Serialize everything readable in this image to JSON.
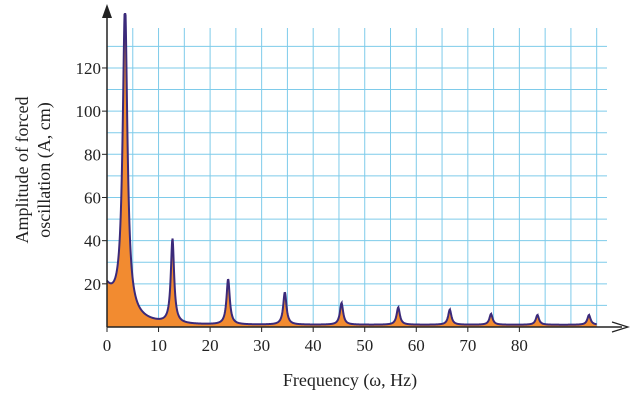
{
  "chart_data": {
    "type": "area",
    "xlabel": "Frequency (ω, Hz)",
    "ylabel_lines": [
      "Amplitude of forced",
      "oscillation (A, cm)"
    ],
    "xlim": [
      0,
      97
    ],
    "ylim": [
      0,
      145
    ],
    "x_ticks": [
      0,
      10,
      20,
      30,
      40,
      50,
      60,
      70,
      80
    ],
    "y_ticks": [
      20,
      40,
      60,
      80,
      100,
      120
    ],
    "grid": true,
    "grid_step_x": 5,
    "grid_step_y": 10,
    "baseline": 17,
    "peaks": [
      {
        "x": 3.5,
        "y": 145
      },
      {
        "x": 12.7,
        "y": 40
      },
      {
        "x": 23.5,
        "y": 22
      },
      {
        "x": 34.5,
        "y": 16
      },
      {
        "x": 45.5,
        "y": 11
      },
      {
        "x": 56.5,
        "y": 9
      },
      {
        "x": 66.5,
        "y": 8
      },
      {
        "x": 74.5,
        "y": 6
      },
      {
        "x": 83.5,
        "y": 5.5
      },
      {
        "x": 93.5,
        "y": 5.5
      }
    ],
    "colors": {
      "fill": "#f28b30",
      "line": "#3b2a7a",
      "grid": "#7ecbea",
      "axis": "#222222"
    }
  }
}
